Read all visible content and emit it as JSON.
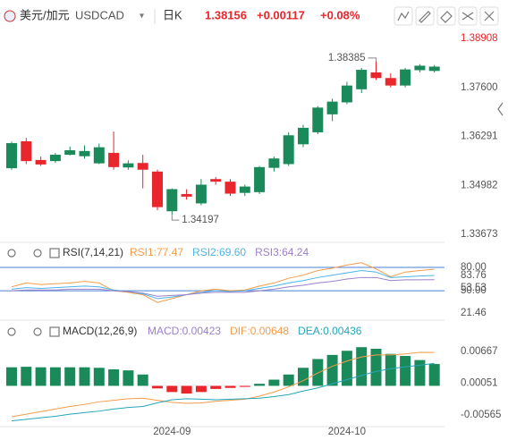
{
  "header": {
    "name": "美元/加元",
    "symbol": "USDCAD",
    "dropdown": "▾",
    "period": "日K",
    "price": "1.38156",
    "change": "+0.00117",
    "change_pct": "+0.08%"
  },
  "chart_data": [
    {
      "type": "candlestick",
      "up_color": "#1b8a5a",
      "down_color": "#e8262c",
      "categories": [
        null,
        null,
        null,
        null,
        null,
        null,
        null,
        null,
        null,
        null,
        null,
        "2024-09",
        null,
        null,
        null,
        null,
        null,
        null,
        null,
        null,
        null,
        null,
        null,
        "2024-10",
        null,
        null,
        null,
        null,
        null,
        null
      ],
      "ohlc": [
        [
          1.3544,
          1.3615,
          1.354,
          1.3611
        ],
        [
          1.3616,
          1.3625,
          1.3555,
          1.3563
        ],
        [
          1.3566,
          1.3575,
          1.355,
          1.3554
        ],
        [
          1.3563,
          1.3585,
          1.3558,
          1.358
        ],
        [
          1.358,
          1.3602,
          1.3578,
          1.3592
        ],
        [
          1.3576,
          1.3605,
          1.357,
          1.359
        ],
        [
          1.3557,
          1.361,
          1.3555,
          1.36
        ],
        [
          1.3585,
          1.3642,
          1.354,
          1.3547
        ],
        [
          1.3546,
          1.3565,
          1.354,
          1.3557
        ],
        [
          1.3558,
          1.358,
          1.349,
          1.354
        ],
        [
          1.3535,
          1.354,
          1.3432,
          1.344
        ],
        [
          1.3429,
          1.349,
          1.34197,
          1.3488
        ],
        [
          1.3475,
          1.3488,
          1.346,
          1.3468
        ],
        [
          1.345,
          1.3515,
          1.3445,
          1.35
        ],
        [
          1.3515,
          1.352,
          1.35,
          1.3508
        ],
        [
          1.3508,
          1.3515,
          1.347,
          1.3476
        ],
        [
          1.3478,
          1.35,
          1.347,
          1.3495
        ],
        [
          1.348,
          1.355,
          1.3475,
          1.3547
        ],
        [
          1.3545,
          1.3575,
          1.3535,
          1.357
        ],
        [
          1.3555,
          1.364,
          1.355,
          1.3632
        ],
        [
          1.3608,
          1.366,
          1.36,
          1.3652
        ],
        [
          1.364,
          1.371,
          1.3635,
          1.3706
        ],
        [
          1.3688,
          1.373,
          1.367,
          1.3722
        ],
        [
          1.372,
          1.3775,
          1.3715,
          1.3765
        ],
        [
          1.3755,
          1.3812,
          1.3745,
          1.3807
        ],
        [
          1.38,
          1.38385,
          1.378,
          1.3785
        ],
        [
          1.3785,
          1.3798,
          1.376,
          1.3765
        ],
        [
          1.3765,
          1.3812,
          1.376,
          1.3808
        ],
        [
          1.3806,
          1.3822,
          1.38,
          1.3818
        ],
        [
          1.3804,
          1.382,
          1.38,
          1.38156
        ]
      ],
      "annotations": [
        {
          "text": "1.38385",
          "index": 25
        },
        {
          "text": "1.34197",
          "index": 11
        }
      ],
      "ylim": [
        1.33482,
        1.39219
      ],
      "yticks": [
        1.38908,
        {
          "value": 1.376,
          "label": "1.37600"
        },
        1.36291,
        1.34982,
        1.33673
      ]
    },
    {
      "type": "line",
      "title": "RSI(7,14,21)",
      "series": [
        {
          "name": "RSI1:77.47",
          "color": "#f39c4a",
          "values": [
            55,
            60,
            58,
            59,
            60,
            62,
            60,
            50,
            48,
            45,
            35,
            40,
            45,
            50,
            52,
            50,
            51,
            56,
            60,
            66,
            70,
            76,
            79,
            83,
            86,
            78,
            68,
            74,
            76,
            77.47
          ]
        },
        {
          "name": "RSI2:69.60",
          "color": "#4fb3e8",
          "values": [
            52,
            54,
            53,
            54,
            55,
            56,
            55,
            51,
            49,
            46,
            40,
            42,
            45,
            48,
            50,
            49,
            50,
            53,
            56,
            60,
            63,
            67,
            70,
            73,
            76,
            74,
            67,
            68,
            69,
            69.6
          ]
        },
        {
          "name": "RSI3:64.24",
          "color": "#9b7fc9",
          "values": [
            50,
            51,
            51,
            51,
            52,
            52,
            52,
            50,
            49,
            47,
            43,
            44,
            45,
            47,
            48,
            48,
            48,
            50,
            52,
            55,
            57,
            60,
            62,
            65,
            67,
            67,
            63,
            64,
            64,
            64.24
          ]
        }
      ],
      "ylim": [
        12.3,
        90.3
      ],
      "yticks": [
        {
          "value": 80,
          "label": "80.00"
        },
        {
          "value": 50,
          "label": "50.00"
        },
        {
          "value": 21.46,
          "label": "21.46"
        }
      ],
      "axis_tags": [
        "83.76",
        "53.53"
      ]
    },
    {
      "type": "macd",
      "title": "MACD(12,26,9)",
      "histogram": {
        "name": "MACD:0.00423",
        "color": "#9b7fc9",
        "up_color": "#1b8a5a",
        "down_color": "#e8262c",
        "values": [
          0.0036,
          0.0037,
          0.0036,
          0.0036,
          0.0036,
          0.0036,
          0.0035,
          0.0032,
          0.003,
          0.0022,
          -0.0005,
          -0.0012,
          -0.0015,
          -0.0012,
          -0.0006,
          -0.0004,
          -0.0002,
          0.0004,
          0.0012,
          0.0022,
          0.0035,
          0.0052,
          0.006,
          0.0068,
          0.0075,
          0.0072,
          0.0062,
          0.0058,
          0.005,
          0.00423
        ]
      },
      "series": [
        {
          "name": "DIF:0.00648",
          "color": "#f39c4a",
          "values": [
            -0.006,
            -0.0055,
            -0.005,
            -0.0045,
            -0.004,
            -0.0036,
            -0.0031,
            -0.0028,
            -0.0025,
            -0.0024,
            -0.0028,
            -0.0032,
            -0.0034,
            -0.0033,
            -0.003,
            -0.0028,
            -0.0026,
            -0.002,
            -0.0012,
            -0.0002,
            0.001,
            0.0025,
            0.0038,
            0.0048,
            0.0056,
            0.006,
            0.006,
            0.0062,
            0.0065,
            0.00648
          ]
        },
        {
          "name": "DEA:0.00436",
          "color": "#23a6b8",
          "values": [
            -0.0068,
            -0.0065,
            -0.0062,
            -0.0059,
            -0.0055,
            -0.0052,
            -0.0049,
            -0.0045,
            -0.0042,
            -0.004,
            -0.0033,
            -0.0027,
            -0.0025,
            -0.0026,
            -0.0027,
            -0.0026,
            -0.0025,
            -0.0024,
            -0.0021,
            -0.0017,
            -0.001,
            -0.0004,
            0.0004,
            0.0012,
            0.002,
            0.0028,
            0.0033,
            0.0037,
            0.004,
            0.00436
          ]
        }
      ],
      "ylim": [
        -0.00773,
        0.00927
      ],
      "yticks": [
        0.00667,
        0.00051,
        -0.00565
      ]
    }
  ]
}
